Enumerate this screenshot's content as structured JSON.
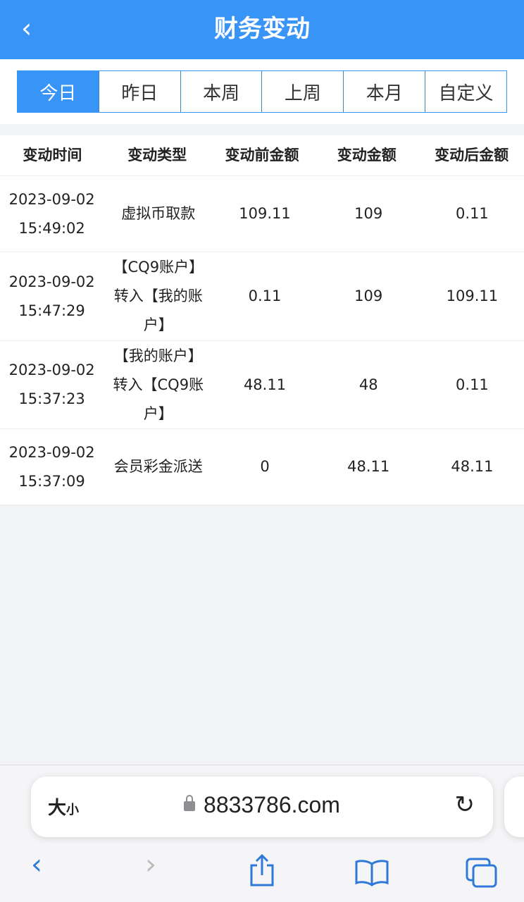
{
  "header": {
    "title": "财务变动",
    "back_icon": "chevron-left-icon"
  },
  "tabs": [
    {
      "label": "今日",
      "active": true
    },
    {
      "label": "昨日"
    },
    {
      "label": "本周"
    },
    {
      "label": "上周"
    },
    {
      "label": "本月"
    },
    {
      "label": "自定义"
    }
  ],
  "table": {
    "columns": [
      "变动时间",
      "变动类型",
      "变动前金额",
      "变动金额",
      "变动后金额"
    ],
    "rows": [
      {
        "date": "2023-09-02",
        "time": "15:49:02",
        "type": "虚拟币取款",
        "before": "109.11",
        "amount": "109",
        "after": "0.11"
      },
      {
        "date": "2023-09-02",
        "time": "15:47:29",
        "type": "【CQ9账户】转入【我的账户】",
        "before": "0.11",
        "amount": "109",
        "after": "109.11"
      },
      {
        "date": "2023-09-02",
        "time": "15:37:23",
        "type": "【我的账户】转入【CQ9账户】",
        "before": "48.11",
        "amount": "48",
        "after": "0.11"
      },
      {
        "date": "2023-09-02",
        "time": "15:37:09",
        "type": "会员彩金派送",
        "before": "0",
        "amount": "48.11",
        "after": "48.11"
      }
    ]
  },
  "browser": {
    "text_size": "大",
    "text_size_small": "小",
    "url": "8833786.com"
  },
  "colors": {
    "accent": "#3994f8"
  }
}
